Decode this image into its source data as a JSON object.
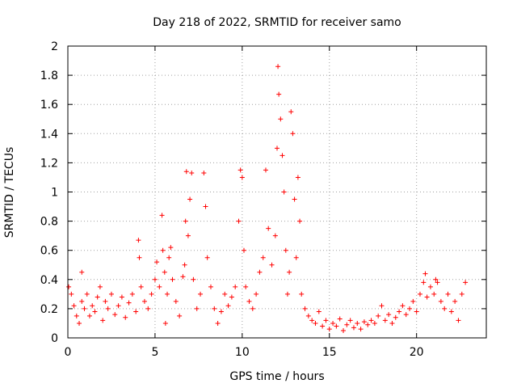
{
  "chart_data": {
    "type": "scatter",
    "title": "Day 218 of 2022, SRMTID for receiver samo",
    "xlabel": "GPS time / hours",
    "ylabel": "SRMTID / TECUs",
    "xlim": [
      0,
      24
    ],
    "ylim": [
      0,
      2
    ],
    "xticks": [
      0,
      5,
      10,
      15,
      20
    ],
    "xtick_labels": [
      "0",
      "5",
      "10",
      "15",
      "20"
    ],
    "yticks": [
      0,
      0.2,
      0.4,
      0.6,
      0.8,
      1,
      1.2,
      1.4,
      1.6,
      1.8,
      2
    ],
    "ytick_labels": [
      "0",
      "0.2",
      "0.4",
      "0.6",
      "0.8",
      "1",
      "1.2",
      "1.4",
      "1.6",
      "1.8",
      "2"
    ],
    "grid": true,
    "marker": "+",
    "color": "#ff0000",
    "series": [
      {
        "name": "SRMTID",
        "points": [
          [
            0.05,
            0.35
          ],
          [
            0.2,
            0.3
          ],
          [
            0.35,
            0.22
          ],
          [
            0.5,
            0.15
          ],
          [
            0.65,
            0.1
          ],
          [
            0.8,
            0.25
          ],
          [
            0.8,
            0.45
          ],
          [
            0.95,
            0.2
          ],
          [
            1.1,
            0.3
          ],
          [
            1.25,
            0.15
          ],
          [
            1.4,
            0.22
          ],
          [
            1.55,
            0.18
          ],
          [
            1.7,
            0.28
          ],
          [
            1.85,
            0.35
          ],
          [
            2.0,
            0.12
          ],
          [
            2.15,
            0.25
          ],
          [
            2.3,
            0.2
          ],
          [
            2.5,
            0.3
          ],
          [
            2.7,
            0.16
          ],
          [
            2.9,
            0.22
          ],
          [
            3.1,
            0.28
          ],
          [
            3.3,
            0.14
          ],
          [
            3.5,
            0.24
          ],
          [
            3.7,
            0.3
          ],
          [
            3.9,
            0.18
          ],
          [
            4.05,
            0.67
          ],
          [
            4.1,
            0.55
          ],
          [
            4.2,
            0.35
          ],
          [
            4.4,
            0.25
          ],
          [
            4.6,
            0.2
          ],
          [
            4.8,
            0.3
          ],
          [
            5.0,
            0.4
          ],
          [
            5.1,
            0.52
          ],
          [
            5.25,
            0.35
          ],
          [
            5.4,
            0.84
          ],
          [
            5.45,
            0.6
          ],
          [
            5.55,
            0.45
          ],
          [
            5.6,
            0.1
          ],
          [
            5.7,
            0.3
          ],
          [
            5.8,
            0.55
          ],
          [
            5.9,
            0.62
          ],
          [
            6.0,
            0.4
          ],
          [
            6.2,
            0.25
          ],
          [
            6.4,
            0.15
          ],
          [
            6.6,
            0.42
          ],
          [
            6.7,
            0.5
          ],
          [
            6.75,
            0.8
          ],
          [
            6.8,
            1.14
          ],
          [
            6.9,
            0.7
          ],
          [
            7.0,
            0.95
          ],
          [
            7.1,
            1.13
          ],
          [
            7.2,
            0.4
          ],
          [
            7.4,
            0.2
          ],
          [
            7.6,
            0.3
          ],
          [
            7.8,
            1.13
          ],
          [
            7.9,
            0.9
          ],
          [
            8.0,
            0.55
          ],
          [
            8.2,
            0.35
          ],
          [
            8.4,
            0.2
          ],
          [
            8.6,
            0.1
          ],
          [
            8.8,
            0.18
          ],
          [
            9.0,
            0.3
          ],
          [
            9.2,
            0.22
          ],
          [
            9.4,
            0.28
          ],
          [
            9.6,
            0.35
          ],
          [
            9.8,
            0.8
          ],
          [
            9.9,
            1.15
          ],
          [
            10.0,
            1.1
          ],
          [
            10.1,
            0.6
          ],
          [
            10.2,
            0.35
          ],
          [
            10.4,
            0.25
          ],
          [
            10.6,
            0.2
          ],
          [
            10.8,
            0.3
          ],
          [
            11.0,
            0.45
          ],
          [
            11.2,
            0.55
          ],
          [
            11.35,
            1.15
          ],
          [
            11.5,
            0.75
          ],
          [
            11.7,
            0.5
          ],
          [
            11.9,
            0.7
          ],
          [
            12.0,
            1.3
          ],
          [
            12.05,
            1.86
          ],
          [
            12.1,
            1.67
          ],
          [
            12.2,
            1.5
          ],
          [
            12.3,
            1.25
          ],
          [
            12.4,
            1.0
          ],
          [
            12.5,
            0.6
          ],
          [
            12.6,
            0.3
          ],
          [
            12.7,
            0.45
          ],
          [
            12.8,
            1.55
          ],
          [
            12.9,
            1.4
          ],
          [
            13.0,
            0.95
          ],
          [
            13.1,
            0.55
          ],
          [
            13.2,
            1.1
          ],
          [
            13.3,
            0.8
          ],
          [
            13.4,
            0.3
          ],
          [
            13.6,
            0.2
          ],
          [
            13.8,
            0.15
          ],
          [
            14.0,
            0.12
          ],
          [
            14.2,
            0.1
          ],
          [
            14.4,
            0.18
          ],
          [
            14.6,
            0.08
          ],
          [
            14.8,
            0.12
          ],
          [
            15.0,
            0.06
          ],
          [
            15.2,
            0.1
          ],
          [
            15.4,
            0.08
          ],
          [
            15.6,
            0.13
          ],
          [
            15.8,
            0.05
          ],
          [
            16.0,
            0.09
          ],
          [
            16.2,
            0.12
          ],
          [
            16.4,
            0.07
          ],
          [
            16.6,
            0.1
          ],
          [
            16.8,
            0.06
          ],
          [
            17.0,
            0.11
          ],
          [
            17.2,
            0.09
          ],
          [
            17.4,
            0.12
          ],
          [
            17.6,
            0.1
          ],
          [
            17.8,
            0.15
          ],
          [
            18.0,
            0.22
          ],
          [
            18.2,
            0.12
          ],
          [
            18.4,
            0.16
          ],
          [
            18.6,
            0.1
          ],
          [
            18.8,
            0.14
          ],
          [
            19.0,
            0.18
          ],
          [
            19.2,
            0.22
          ],
          [
            19.4,
            0.16
          ],
          [
            19.6,
            0.2
          ],
          [
            19.8,
            0.25
          ],
          [
            20.0,
            0.18
          ],
          [
            20.2,
            0.3
          ],
          [
            20.4,
            0.38
          ],
          [
            20.5,
            0.44
          ],
          [
            20.6,
            0.28
          ],
          [
            20.8,
            0.35
          ],
          [
            21.0,
            0.3
          ],
          [
            21.1,
            0.4
          ],
          [
            21.2,
            0.38
          ],
          [
            21.4,
            0.25
          ],
          [
            21.6,
            0.2
          ],
          [
            21.8,
            0.3
          ],
          [
            22.0,
            0.18
          ],
          [
            22.2,
            0.25
          ],
          [
            22.4,
            0.12
          ],
          [
            22.6,
            0.3
          ],
          [
            22.8,
            0.38
          ]
        ]
      }
    ]
  }
}
